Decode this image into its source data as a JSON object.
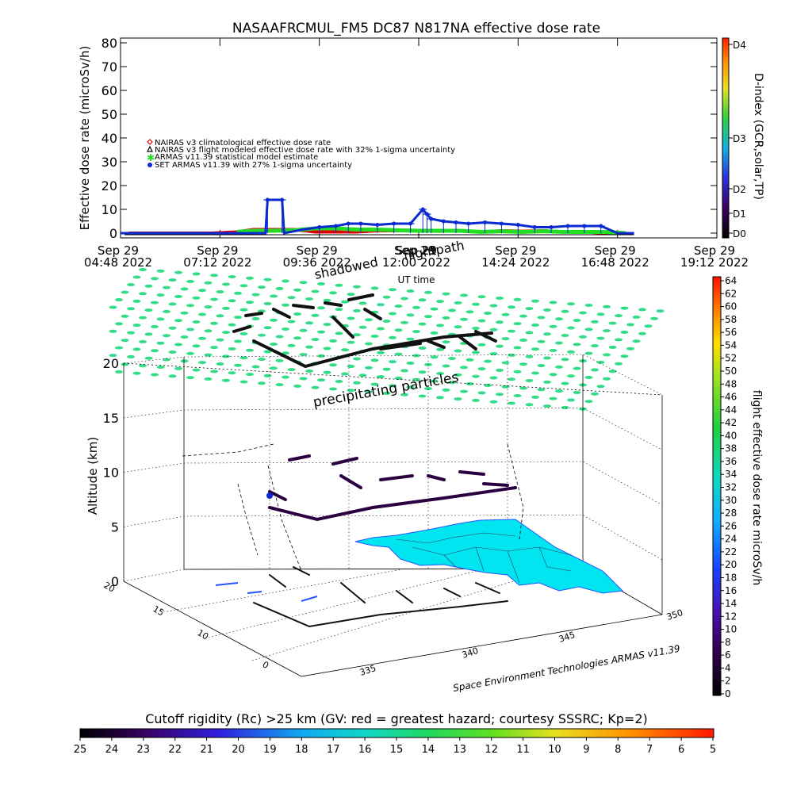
{
  "colors": {
    "nairas_clim": "#e00000",
    "nairas_flight": "#000000",
    "armas_stat": "#22dd22",
    "set_armas": "#0a2ad0",
    "grid_points": "#33dd88",
    "land": "#00e5f0",
    "coast": "#2255ff"
  },
  "chart_data": [
    {
      "type": "line",
      "title": "NASAAFRCMUL_FM5 DC87 N817NA effective dose rate",
      "xlabel": "UT time",
      "ylabel": "Effective dose rate (microSv/h)",
      "ylim": [
        0,
        80
      ],
      "yticks": [
        "0",
        "10",
        "20",
        "30",
        "40",
        "50",
        "60",
        "70",
        "80"
      ],
      "xticks": [
        {
          "top": "Sep 29",
          "bottom": "04:48 2022"
        },
        {
          "top": "Sep 29",
          "bottom": "07:12 2022"
        },
        {
          "top": "Sep 29",
          "bottom": "09:36 2022"
        },
        {
          "top": "Sep 29",
          "bottom": "12:00 2022"
        },
        {
          "top": "Sep 29",
          "bottom": "14:24 2022"
        },
        {
          "top": "Sep 29",
          "bottom": "16:48 2022"
        },
        {
          "top": "Sep 29",
          "bottom": "19:12 2022"
        }
      ],
      "xhours": [
        4.8,
        7.2,
        9.6,
        12.0,
        14.4,
        16.8,
        19.2
      ],
      "legend": [
        "NAIRAS v3 climatological effective dose rate",
        "NAIRAS v3 flight modeled effective dose rate with 32% 1-sigma uncertainty",
        "ARMAS v11.39 statistical model estimate",
        "SET ARMAS v11.39 with 27% 1-sigma uncertainty"
      ],
      "overlay_labels": [
        "Sep 29",
        "shadowed",
        "flightpath"
      ],
      "series": [
        {
          "name": "NAIRAS v3 climatological effective dose rate",
          "x": [
            5.0,
            6.0,
            7.0,
            7.6,
            8.0,
            8.5,
            9.0,
            9.5,
            10.0,
            10.5,
            11.0,
            11.5,
            12.0,
            12.5,
            13.0,
            13.5,
            14.0,
            14.5,
            15.0,
            15.5,
            16.0,
            16.5,
            17.0
          ],
          "y": [
            0.0,
            0.0,
            0.0,
            0.5,
            1.5,
            1.5,
            1.5,
            0.5,
            0.5,
            0.5,
            1.0,
            1.0,
            1.0,
            0.8,
            1.0,
            0.5,
            1.0,
            0.8,
            1.0,
            0.5,
            0.5,
            0.0,
            0.0
          ]
        },
        {
          "name": "ARMAS v11.39 statistical model estimate",
          "x": [
            7.6,
            8.0,
            8.5,
            9.0,
            9.5,
            10.0,
            10.5,
            11.0,
            11.5,
            12.0,
            12.5,
            13.0,
            13.5,
            14.0,
            14.5,
            15.0,
            15.5,
            16.0,
            16.5,
            17.0
          ],
          "y": [
            0.5,
            1.0,
            1.0,
            1.2,
            2.0,
            2.0,
            1.5,
            1.5,
            1.2,
            1.0,
            1.0,
            1.0,
            0.5,
            0.8,
            0.5,
            0.8,
            0.5,
            0.5,
            0.5,
            0.0
          ]
        },
        {
          "name": "SET ARMAS v11.39 with 27% 1-sigma uncertainty",
          "x": [
            4.8,
            5.5,
            6.5,
            7.5,
            8.0,
            8.3,
            8.35,
            8.7,
            8.75,
            9.2,
            9.6,
            10.0,
            10.3,
            10.6,
            11.0,
            11.4,
            11.8,
            12.1,
            12.2,
            12.3,
            12.6,
            12.9,
            13.2,
            13.6,
            14.0,
            14.4,
            14.8,
            15.2,
            15.6,
            16.0,
            16.4,
            16.8,
            17.2
          ],
          "y": [
            0.0,
            0.0,
            0.0,
            0.0,
            0.0,
            0.0,
            14.0,
            14.0,
            0.0,
            1.5,
            2.5,
            3.0,
            4.0,
            4.0,
            3.5,
            4.0,
            4.0,
            10.0,
            8.0,
            6.0,
            5.0,
            4.5,
            4.0,
            4.5,
            4.0,
            3.5,
            2.5,
            2.5,
            3.0,
            3.0,
            3.0,
            0.0,
            0.0
          ]
        }
      ],
      "dindex": {
        "label": "D-index (GCR,solar,TP)",
        "ticks": [
          "D0",
          "D1",
          "D2",
          "D3",
          "D4"
        ]
      }
    },
    {
      "type": "scatter",
      "xlabel": "",
      "ylabel": "Altitude (km)",
      "zlim": [
        0,
        20
      ],
      "zticks": [
        "0",
        "5",
        "10",
        "15",
        "20"
      ],
      "depth_ticks": [
        "20",
        "15",
        "10",
        "0"
      ],
      "lon_ticks": [
        "335",
        "340",
        "345",
        "350"
      ],
      "annotations": [
        "precipitating particles"
      ],
      "credit": "Space Environment Technologies ARMAS v11.39",
      "dose_colorbar": {
        "label": "flight effective dose rate microSv/h",
        "ticks": [
          "0",
          "2",
          "4",
          "6",
          "8",
          "10",
          "12",
          "14",
          "16",
          "18",
          "20",
          "22",
          "24",
          "26",
          "28",
          "30",
          "32",
          "34",
          "36",
          "38",
          "40",
          "42",
          "44",
          "46",
          "48",
          "50",
          "52",
          "54",
          "56",
          "58",
          "60",
          "62",
          "64"
        ]
      }
    }
  ],
  "cutoff_colorbar": {
    "label": "Cutoff rigidity (Rc) >25 km (GV: red = greatest hazard; courtesy SSSRC; Kp=2)",
    "ticks": [
      "25",
      "24",
      "23",
      "22",
      "21",
      "20",
      "19",
      "18",
      "17",
      "16",
      "15",
      "14",
      "13",
      "12",
      "11",
      "10",
      "9",
      "8",
      "7",
      "6",
      "5"
    ]
  }
}
